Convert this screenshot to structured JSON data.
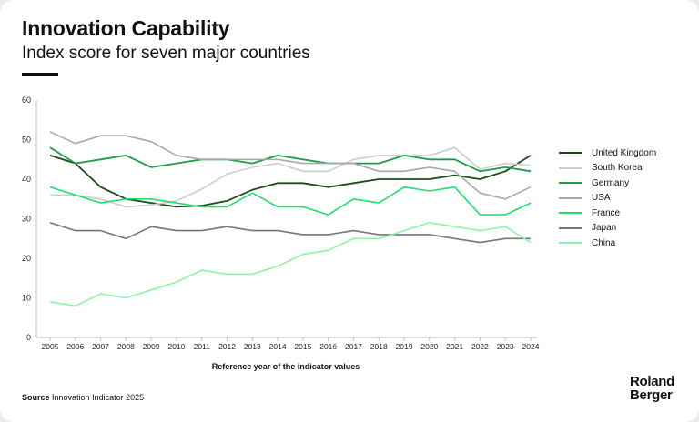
{
  "title": "Innovation Capability",
  "subtitle": "Index score for seven major countries",
  "source_label": "Source",
  "source_text": "Innovation Indicator 2025",
  "logo_line1": "Roland",
  "logo_line2": "Berger",
  "chart_data": {
    "type": "line",
    "title": "Innovation Capability",
    "subtitle": "Index score for seven major countries",
    "xlabel": "Reference year of the indicator values",
    "ylabel": "",
    "ylim": [
      0,
      60
    ],
    "yticks": [
      0,
      10,
      20,
      30,
      40,
      50,
      60
    ],
    "grid": false,
    "legend": "right",
    "x": [
      "2005",
      "2006",
      "2007",
      "2008",
      "2009",
      "2010",
      "2011",
      "2012",
      "2013",
      "2014",
      "2015",
      "2016",
      "2017",
      "2018",
      "2019",
      "2020",
      "2021",
      "2022",
      "2023",
      "2024"
    ],
    "series": [
      {
        "name": "United Kingdom",
        "color": "#1f4a1c",
        "width": 1.8,
        "values": [
          46,
          44,
          38,
          35,
          34,
          33,
          33.3,
          34.5,
          37.3,
          39,
          39,
          38,
          39,
          40,
          40,
          40,
          41,
          40,
          42,
          46
        ]
      },
      {
        "name": "South Korea",
        "color": "#cdcdcd",
        "width": 1.6,
        "values": [
          36,
          36,
          35,
          33,
          33.5,
          34.5,
          37.5,
          41.3,
          43,
          44,
          42,
          42,
          45,
          46,
          46,
          46,
          48,
          42.5,
          44,
          43.5
        ]
      },
      {
        "name": "Germany",
        "color": "#1e9c4d",
        "width": 1.8,
        "values": [
          48,
          44,
          45,
          46,
          43,
          44,
          45,
          45,
          44,
          46,
          45,
          44,
          44,
          44,
          46,
          45,
          45,
          42,
          43,
          42
        ]
      },
      {
        "name": "USA",
        "color": "#a9a9a9",
        "width": 1.6,
        "values": [
          52,
          49,
          51,
          51,
          49.5,
          46,
          45,
          45,
          45,
          45,
          44,
          44,
          44,
          42,
          42,
          43,
          42,
          36.5,
          35,
          38
        ]
      },
      {
        "name": "France",
        "color": "#1ee06e",
        "width": 1.6,
        "values": [
          38,
          36,
          34,
          35,
          35,
          34,
          33,
          33,
          36.5,
          33,
          33,
          31,
          35,
          34,
          38,
          37,
          38,
          31,
          31,
          34
        ]
      },
      {
        "name": "Japan",
        "color": "#777777",
        "width": 1.6,
        "values": [
          29,
          27,
          27,
          25,
          28,
          27,
          27,
          28,
          27,
          27,
          26,
          26,
          27,
          26,
          26,
          26,
          25,
          24,
          25,
          25
        ]
      },
      {
        "name": "China",
        "color": "#8ff3a6",
        "width": 1.6,
        "values": [
          9,
          8,
          11,
          10,
          12,
          14,
          17,
          16,
          16,
          18,
          21,
          22,
          25,
          25,
          27,
          29,
          28,
          27,
          28,
          24
        ]
      }
    ]
  }
}
